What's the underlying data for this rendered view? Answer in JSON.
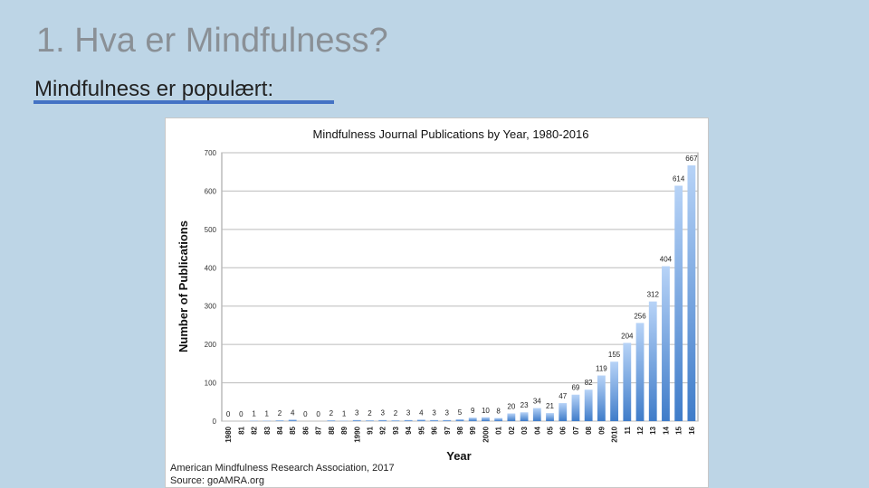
{
  "slide": {
    "title": "1. Hva er Mindfulness?",
    "subtitle": "Mindfulness er populært:",
    "accent_color": "#4472c4",
    "background_color": "#bdd5e6"
  },
  "chart_data": {
    "type": "bar",
    "title": "Mindfulness Journal Publications by Year, 1980-2016",
    "xlabel": "Year",
    "ylabel": "Number of Publications",
    "ylim": [
      0,
      700
    ],
    "yticks": [
      0,
      100,
      200,
      300,
      400,
      500,
      600,
      700
    ],
    "grid": true,
    "bar_color": "#7aaae6",
    "categories": [
      "1980",
      "81",
      "82",
      "83",
      "84",
      "85",
      "86",
      "87",
      "88",
      "89",
      "1990",
      "91",
      "92",
      "93",
      "94",
      "95",
      "96",
      "97",
      "98",
      "99",
      "2000",
      "01",
      "02",
      "03",
      "04",
      "05",
      "06",
      "07",
      "08",
      "09",
      "2010",
      "11",
      "12",
      "13",
      "14",
      "15",
      "16"
    ],
    "values": [
      0,
      0,
      1,
      1,
      2,
      4,
      0,
      0,
      2,
      1,
      3,
      2,
      3,
      2,
      3,
      4,
      3,
      3,
      5,
      9,
      10,
      8,
      20,
      23,
      34,
      21,
      47,
      69,
      82,
      119,
      155,
      204,
      256,
      312,
      404,
      614,
      667
    ],
    "source_line1": "American Mindfulness Research Association, 2017",
    "source_line2": "Source: goAMRA.org"
  }
}
